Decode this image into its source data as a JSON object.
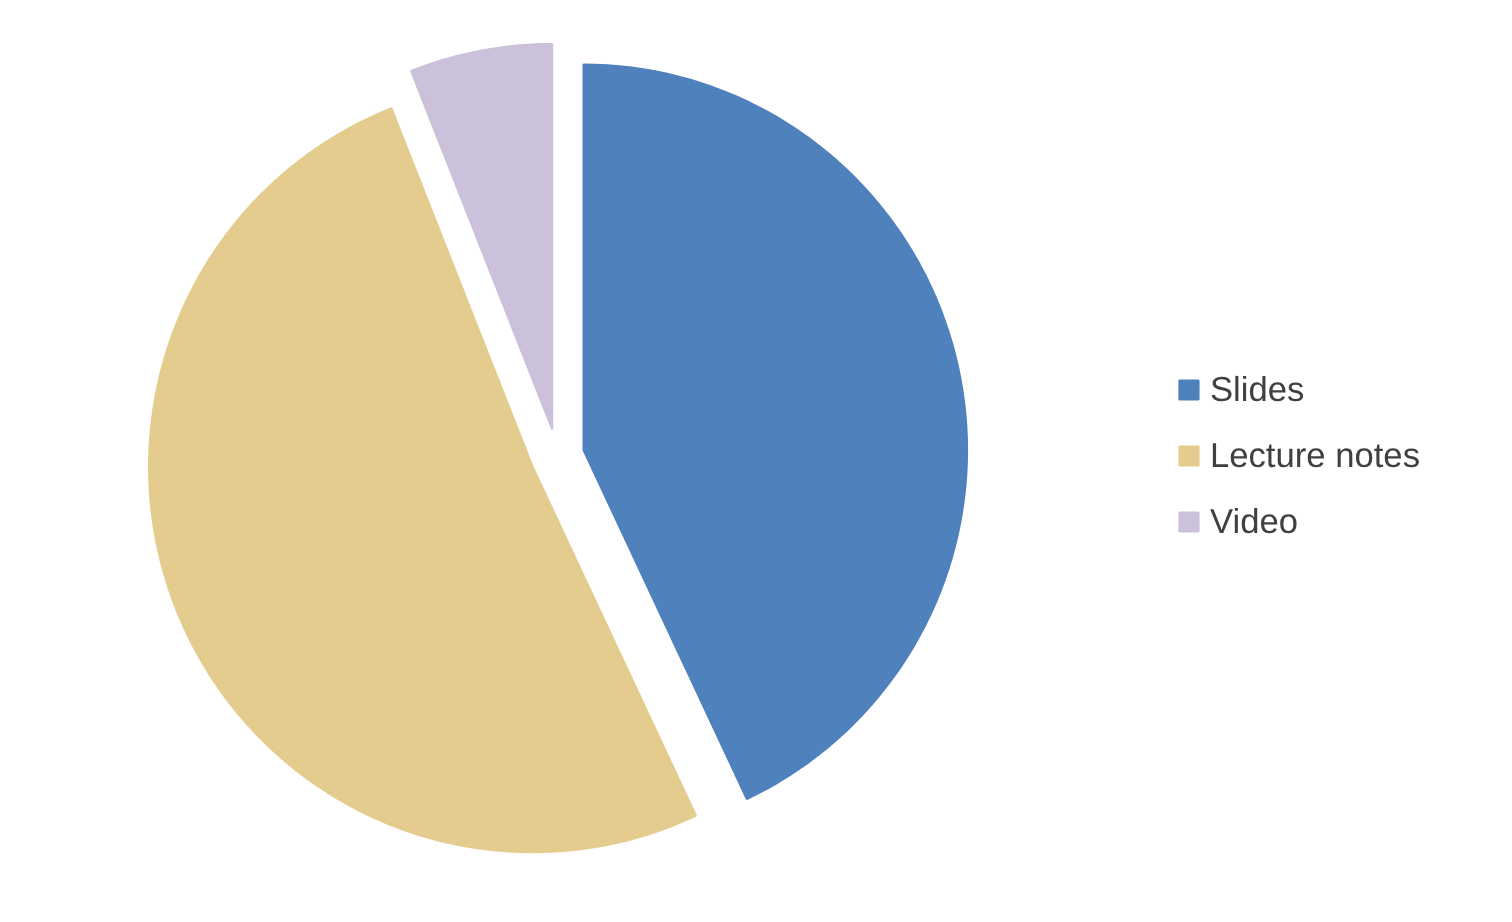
{
  "chart_data": {
    "type": "pie",
    "categories": [
      "Slides",
      "Lecture notes",
      "Video"
    ],
    "values": [
      43,
      51,
      6
    ],
    "colors": [
      "#4f81bd",
      "#e3cc8e",
      "#ccc1da"
    ],
    "legend": "right"
  }
}
